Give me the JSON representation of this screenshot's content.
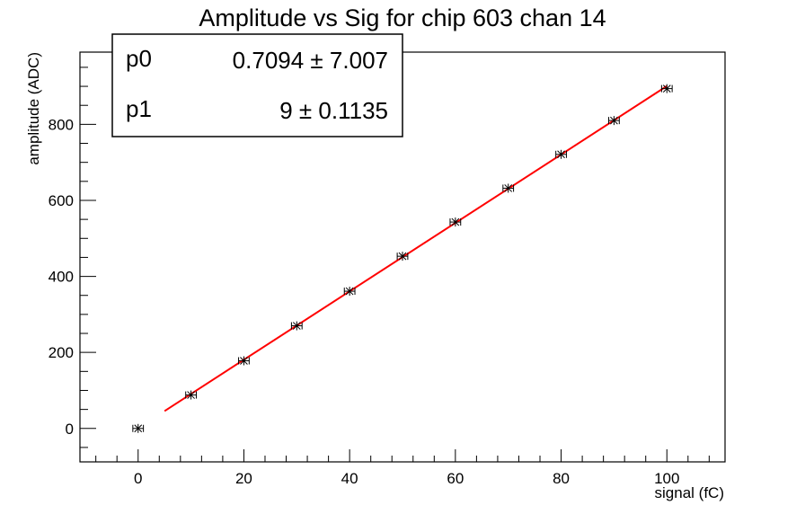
{
  "chart_data": {
    "type": "scatter",
    "title": "Amplitude vs Sig for chip 603 chan 14",
    "xlabel": "signal (fC)",
    "ylabel": "amplitude (ADC)",
    "xlim": [
      -11,
      111
    ],
    "ylim": [
      -88,
      990
    ],
    "x_ticks": [
      0,
      20,
      40,
      60,
      80,
      100
    ],
    "y_ticks": [
      0,
      200,
      400,
      600,
      800
    ],
    "points": {
      "x": [
        0,
        10,
        20,
        30,
        40,
        50,
        60,
        70,
        80,
        90,
        100
      ],
      "y": [
        0,
        88,
        178,
        270,
        361,
        453,
        543,
        632,
        721,
        810,
        894
      ],
      "x_err": 1.0,
      "y_err": 3,
      "color": "#000000"
    },
    "fit": {
      "function": "p0 + p1*x",
      "x_range": [
        5,
        100
      ],
      "color": "#ff0000",
      "params": [
        {
          "name": "p0",
          "value": "0.7094",
          "error": "7.007"
        },
        {
          "name": "p1",
          "value": "9",
          "error": "0.1135"
        }
      ]
    },
    "stats_box": "top-left",
    "grid": false
  }
}
